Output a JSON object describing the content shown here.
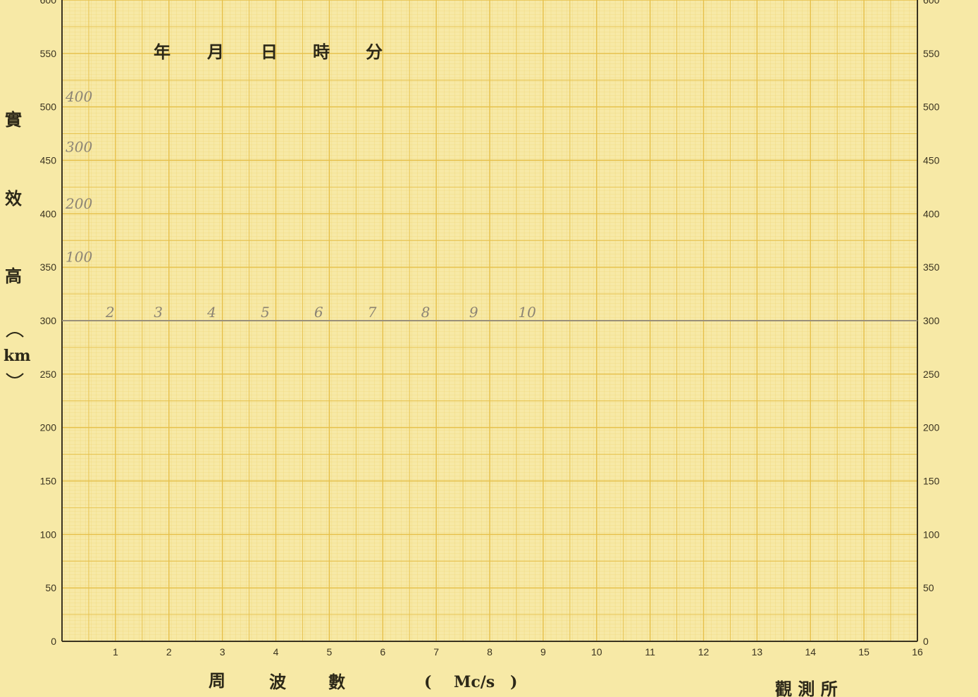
{
  "header": {
    "date_fields": [
      "年",
      "月",
      "日",
      "時",
      "分"
    ]
  },
  "y_axis_label": {
    "chars": [
      "實",
      "效",
      "高"
    ],
    "unit": "km"
  },
  "x_axis_label": {
    "chars": [
      "周",
      "波",
      "數"
    ],
    "unit": "Mc/s",
    "open_paren": "(",
    "close_paren": ")"
  },
  "station_label": "觀 測 所",
  "chart_data": {
    "type": "line",
    "xlabel": "周 波 數 ( Mc/s )",
    "ylabel": "實 效 高 (km)",
    "xlim": [
      0,
      16
    ],
    "ylim": [
      0,
      600
    ],
    "x_ticks": [
      "1",
      "2",
      "3",
      "4",
      "5",
      "6",
      "7",
      "8",
      "9",
      "10",
      "11",
      "12",
      "13",
      "14",
      "15",
      "16"
    ],
    "y_ticks_left": [
      "0",
      "50",
      "100",
      "150",
      "200",
      "250",
      "300",
      "350",
      "400",
      "450",
      "500",
      "550",
      "600"
    ],
    "y_ticks_right": [
      "0",
      "50",
      "100",
      "150",
      "200",
      "250",
      "300",
      "350",
      "400",
      "450",
      "500",
      "550",
      "600"
    ],
    "grid": true,
    "series": [
      {
        "x": [
          0,
          16
        ],
        "y": [
          300,
          300
        ]
      }
    ],
    "handwritten_annotations": {
      "y_side": [
        {
          "text": "100",
          "y": 355
        },
        {
          "text": "200",
          "y": 405
        },
        {
          "text": "300",
          "y": 458
        },
        {
          "text": "400",
          "y": 505
        }
      ],
      "along_line": [
        {
          "text": "2",
          "x": 0.9
        },
        {
          "text": "3",
          "x": 1.8
        },
        {
          "text": "4",
          "x": 2.8
        },
        {
          "text": "5",
          "x": 3.8
        },
        {
          "text": "6",
          "x": 4.8
        },
        {
          "text": "7",
          "x": 5.8
        },
        {
          "text": "8",
          "x": 6.8
        },
        {
          "text": "9",
          "x": 7.7
        },
        {
          "text": "10",
          "x": 8.7
        }
      ]
    }
  }
}
